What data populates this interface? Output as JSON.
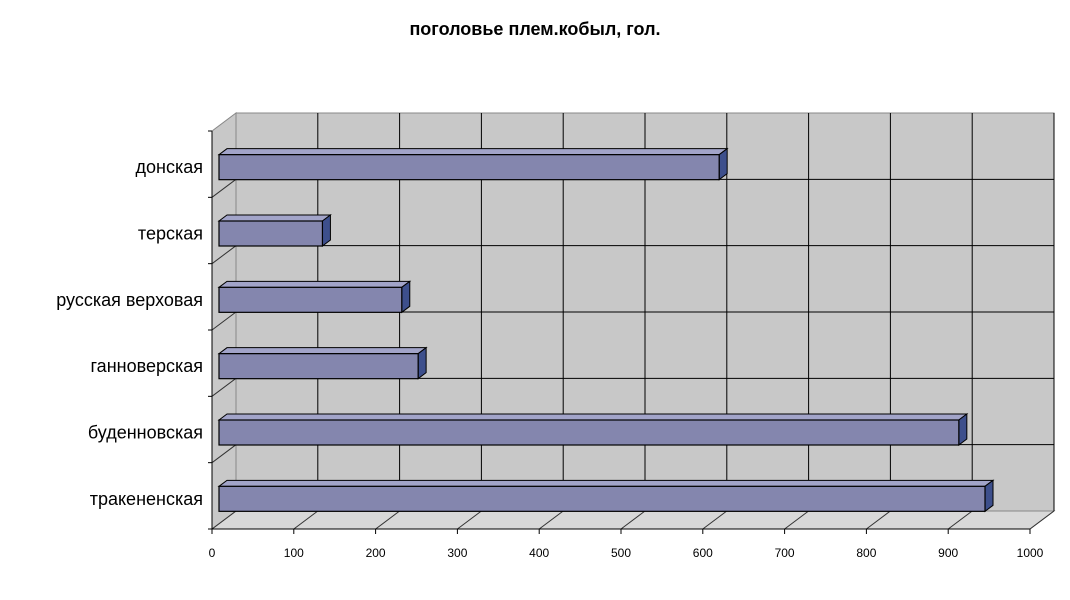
{
  "chart_data": {
    "type": "bar",
    "orientation": "horizontal",
    "style": "3d",
    "title": "поголовье плем.кобыл, гол.",
    "xlabel": "",
    "ylabel": "",
    "categories": [
      "донская",
      "терская",
      "русская верховая",
      "ганноверская",
      "буденновская",
      "тракененская"
    ],
    "values": [
      620,
      135,
      232,
      252,
      913,
      945
    ],
    "xlim": [
      0,
      1000
    ],
    "ticks": [
      "0",
      "100",
      "200",
      "300",
      "400",
      "500",
      "600",
      "700",
      "800",
      "900",
      "1000"
    ],
    "grid": true,
    "legend": "none",
    "colors": {
      "bar_front": "#8486ae",
      "bar_top": "#a2a4c9",
      "bar_side": "#3d4f8c",
      "wall": "#c8c8c8",
      "floor": "#d8d8d8",
      "grid": "#000000"
    }
  }
}
